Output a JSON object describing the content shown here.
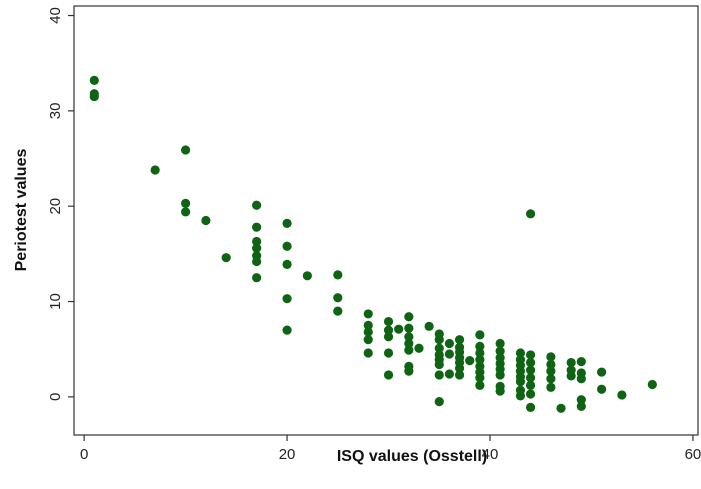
{
  "chart_data": {
    "type": "scatter",
    "xlabel": "ISQ values (Osstell)",
    "ylabel": "Periotest values",
    "xlim": [
      -1,
      60.5
    ],
    "ylim": [
      -4,
      41
    ],
    "x_ticks": [
      0,
      20,
      40,
      60
    ],
    "y_ticks": [
      0,
      10,
      20,
      30,
      40
    ],
    "grid": false,
    "marker_color": "#0f6413",
    "series": [
      {
        "points": [
          [
            1,
            33.2
          ],
          [
            1,
            31.8
          ],
          [
            1,
            31.5
          ],
          [
            7,
            23.8
          ],
          [
            10,
            25.9
          ],
          [
            10,
            20.3
          ],
          [
            10,
            19.4
          ],
          [
            12,
            18.5
          ],
          [
            14,
            14.6
          ],
          [
            17,
            20.1
          ],
          [
            17,
            17.8
          ],
          [
            17,
            16.3
          ],
          [
            17,
            15.6
          ],
          [
            17,
            14.8
          ],
          [
            17,
            14.2
          ],
          [
            17,
            12.5
          ],
          [
            20,
            18.2
          ],
          [
            20,
            15.8
          ],
          [
            20,
            13.9
          ],
          [
            20,
            10.3
          ],
          [
            20,
            7.0
          ],
          [
            22,
            12.7
          ],
          [
            25,
            12.8
          ],
          [
            25,
            10.4
          ],
          [
            25,
            9.0
          ],
          [
            28,
            8.7
          ],
          [
            28,
            7.5
          ],
          [
            28,
            6.8
          ],
          [
            28,
            6.0
          ],
          [
            28,
            4.6
          ],
          [
            30,
            7.9
          ],
          [
            30,
            7.0
          ],
          [
            30,
            6.3
          ],
          [
            30,
            4.6
          ],
          [
            30,
            2.3
          ],
          [
            31,
            7.1
          ],
          [
            32,
            8.4
          ],
          [
            32,
            7.2
          ],
          [
            32,
            6.3
          ],
          [
            32,
            5.6
          ],
          [
            32,
            4.9
          ],
          [
            32,
            3.2
          ],
          [
            32,
            2.7
          ],
          [
            33,
            5.1
          ],
          [
            34,
            7.4
          ],
          [
            35,
            6.6
          ],
          [
            35,
            6.0
          ],
          [
            35,
            5.1
          ],
          [
            35,
            4.4
          ],
          [
            35,
            3.9
          ],
          [
            35,
            3.4
          ],
          [
            35,
            2.3
          ],
          [
            35,
            -0.5
          ],
          [
            36,
            5.6
          ],
          [
            36,
            4.5
          ],
          [
            36,
            2.4
          ],
          [
            37,
            6.0
          ],
          [
            37,
            5.2
          ],
          [
            37,
            4.7
          ],
          [
            37,
            4.1
          ],
          [
            37,
            3.6
          ],
          [
            37,
            3.0
          ],
          [
            37,
            2.3
          ],
          [
            38,
            3.8
          ],
          [
            39,
            6.5
          ],
          [
            39,
            5.3
          ],
          [
            39,
            4.6
          ],
          [
            39,
            3.9
          ],
          [
            39,
            3.2
          ],
          [
            39,
            2.6
          ],
          [
            39,
            2.0
          ],
          [
            39,
            1.2
          ],
          [
            41,
            5.6
          ],
          [
            41,
            4.8
          ],
          [
            41,
            4.1
          ],
          [
            41,
            3.5
          ],
          [
            41,
            2.9
          ],
          [
            41,
            2.3
          ],
          [
            41,
            1.1
          ],
          [
            41,
            0.6
          ],
          [
            43,
            4.6
          ],
          [
            43,
            3.9
          ],
          [
            43,
            3.3
          ],
          [
            43,
            2.7
          ],
          [
            43,
            2.1
          ],
          [
            43,
            1.6
          ],
          [
            43,
            0.7
          ],
          [
            43,
            0.1
          ],
          [
            44,
            19.2
          ],
          [
            44,
            4.4
          ],
          [
            44,
            3.6
          ],
          [
            44,
            2.8
          ],
          [
            44,
            2.0
          ],
          [
            44,
            1.2
          ],
          [
            44,
            0.3
          ],
          [
            44,
            -1.1
          ],
          [
            46,
            4.2
          ],
          [
            46,
            3.4
          ],
          [
            46,
            2.7
          ],
          [
            46,
            1.9
          ],
          [
            46,
            1.0
          ],
          [
            47,
            -1.2
          ],
          [
            48,
            3.6
          ],
          [
            48,
            2.8
          ],
          [
            48,
            2.2
          ],
          [
            49,
            3.7
          ],
          [
            49,
            2.5
          ],
          [
            49,
            1.9
          ],
          [
            49,
            -0.3
          ],
          [
            49,
            -1.0
          ],
          [
            51,
            2.6
          ],
          [
            51,
            0.8
          ],
          [
            53,
            0.2
          ],
          [
            56,
            1.3
          ]
        ]
      }
    ]
  }
}
